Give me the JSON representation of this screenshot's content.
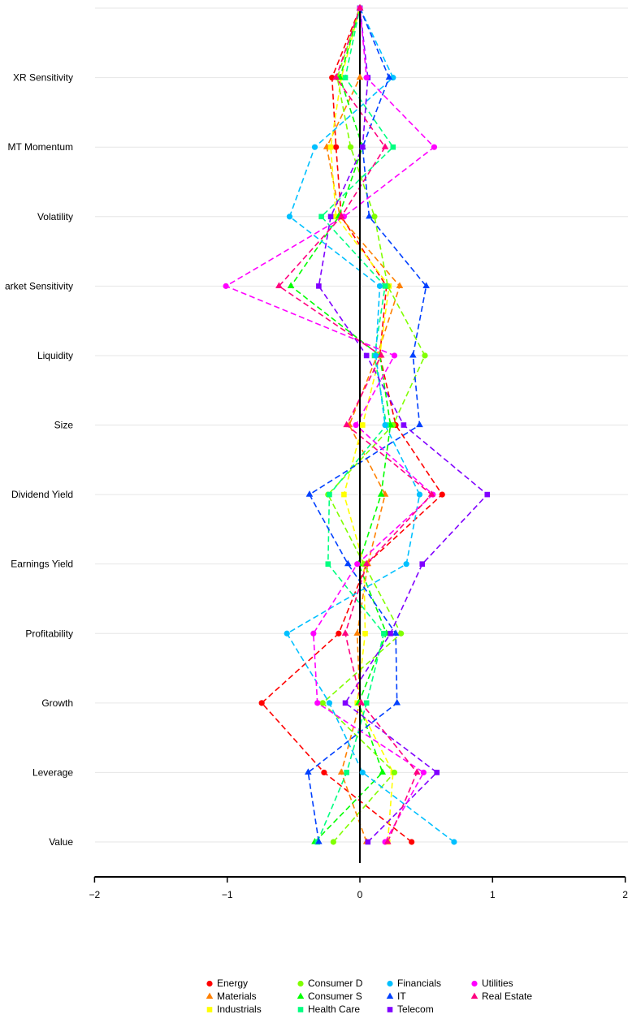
{
  "chart_data": {
    "type": "line",
    "title": "",
    "xlabel": "",
    "ylabel": "",
    "xlim": [
      -2,
      2
    ],
    "x_ticks": [
      "−2",
      "−1",
      "0",
      "1",
      "2"
    ],
    "x_tick_values": [
      -2,
      -1,
      0,
      1,
      2
    ],
    "categories": [
      "Value",
      "Leverage",
      "Growth",
      "Profitability",
      "Earnings Yield",
      "Dividend Yield",
      "Size",
      "Liquidity",
      "Market Sensitivity",
      "Volatility",
      "MT Momentum",
      "XR Sensitivity",
      ""
    ],
    "category_labels": [
      "Value",
      "Leverage",
      "Growth",
      "Profitability",
      "Earnings Yield",
      "Dividend Yield",
      "Size",
      "Liquidity",
      "arket Sensitivity",
      "Volatility",
      "MT Momentum",
      "XR Sensitivity",
      ""
    ],
    "grid": true,
    "reference_line_x": 0,
    "legend_position": "bottom",
    "series": [
      {
        "name": "Energy",
        "color": "#ff0000",
        "marker": "circle",
        "values": [
          0.39,
          -0.27,
          -0.74,
          -0.16,
          0.05,
          0.62,
          0.27,
          0.15,
          0.2,
          -0.14,
          -0.18,
          -0.21,
          0
        ]
      },
      {
        "name": "Materials",
        "color": "#ff8000",
        "marker": "triangle",
        "values": [
          0.05,
          -0.14,
          0.0,
          -0.02,
          0.06,
          0.19,
          -0.08,
          0.13,
          0.3,
          -0.15,
          -0.25,
          0.0,
          0
        ]
      },
      {
        "name": "Industrials",
        "color": "#ffff00",
        "marker": "square",
        "values": [
          0.21,
          0.25,
          -0.02,
          0.04,
          0.03,
          -0.12,
          0.02,
          0.15,
          0.22,
          -0.18,
          -0.22,
          -0.14,
          0
        ]
      },
      {
        "name": "Consumer D",
        "color": "#80ff00",
        "marker": "circle",
        "values": [
          -0.2,
          0.26,
          -0.28,
          0.31,
          0.03,
          -0.24,
          0.25,
          0.49,
          0.21,
          0.11,
          -0.07,
          -0.17,
          0
        ]
      },
      {
        "name": "Consumer S",
        "color": "#00ff00",
        "marker": "triangle",
        "values": [
          -0.34,
          0.17,
          -0.01,
          0.2,
          -0.01,
          0.16,
          0.23,
          0.15,
          -0.52,
          -0.16,
          0.02,
          -0.15,
          0
        ]
      },
      {
        "name": "Health Care",
        "color": "#00ff80",
        "marker": "square",
        "values": [
          -0.32,
          -0.1,
          0.05,
          0.18,
          -0.24,
          -0.23,
          0.2,
          0.11,
          0.19,
          -0.29,
          0.25,
          -0.11,
          0
        ]
      },
      {
        "name": "Financials",
        "color": "#00c0ff",
        "marker": "circle",
        "values": [
          0.71,
          0.02,
          -0.23,
          -0.55,
          0.35,
          0.45,
          0.19,
          0.12,
          0.15,
          -0.53,
          -0.34,
          0.25,
          0
        ]
      },
      {
        "name": "IT",
        "color": "#0040ff",
        "marker": "triangle",
        "values": [
          -0.31,
          -0.39,
          0.28,
          0.27,
          -0.09,
          -0.38,
          0.45,
          0.4,
          0.5,
          0.07,
          0.02,
          0.22,
          0
        ]
      },
      {
        "name": "Telecom",
        "color": "#8000ff",
        "marker": "square",
        "values": [
          0.06,
          0.58,
          -0.11,
          0.23,
          0.47,
          0.96,
          0.33,
          0.05,
          -0.31,
          -0.22,
          0.02,
          0.06,
          0
        ]
      },
      {
        "name": "Utilities",
        "color": "#ff00ff",
        "marker": "circle",
        "values": [
          0.19,
          0.48,
          -0.32,
          -0.35,
          -0.02,
          0.55,
          -0.03,
          0.26,
          -1.01,
          -0.12,
          0.56,
          0.05,
          0
        ]
      },
      {
        "name": "Real Estate",
        "color": "#ff0080",
        "marker": "triangle",
        "values": [
          0.21,
          0.43,
          0.01,
          -0.11,
          0.05,
          0.54,
          -0.1,
          0.16,
          -0.61,
          -0.14,
          0.19,
          -0.18,
          0
        ]
      }
    ]
  }
}
